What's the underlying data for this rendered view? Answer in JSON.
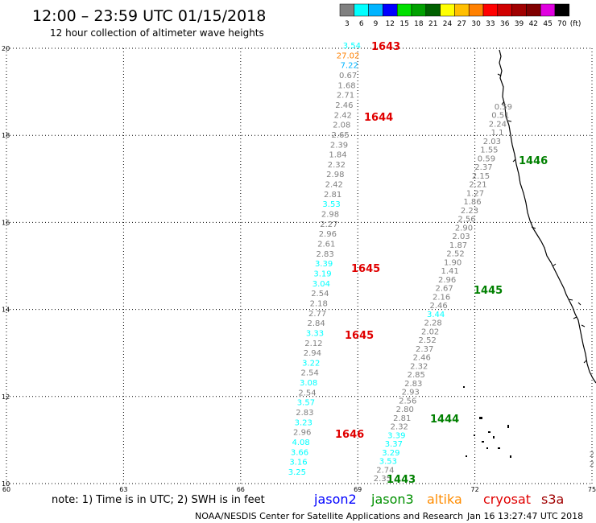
{
  "header": {
    "title": "12:00 – 23:59 UTC 01/15/2018",
    "subtitle": "12 hour collection of altimeter wave heights"
  },
  "colorbar": {
    "labels": [
      "3",
      "6",
      "9",
      "12",
      "15",
      "18",
      "21",
      "24",
      "27",
      "30",
      "33",
      "36",
      "39",
      "42",
      "45",
      "70"
    ],
    "unit": "(ft)",
    "colors": [
      "#808080",
      "#00ffff",
      "#00b4ff",
      "#0000ff",
      "#00e000",
      "#00a000",
      "#006000",
      "#ffff00",
      "#ffbf00",
      "#ff8000",
      "#ff0000",
      "#d00000",
      "#a00000",
      "#800000",
      "#e000e0",
      "#000000"
    ]
  },
  "axes": {
    "lon_ticks": [
      "60",
      "63",
      "66",
      "69",
      "72",
      "75"
    ],
    "lat_ticks": [
      "10",
      "12",
      "14",
      "16",
      "18",
      "20"
    ],
    "lon_range": [
      60,
      75
    ],
    "lat_range": [
      10,
      20
    ],
    "grid": true
  },
  "tracks": {
    "track_a": {
      "values": [
        "3.54",
        "27.02",
        "7.22",
        "0.67",
        "1.68",
        "2.71",
        "2.46",
        "2.42",
        "2.08",
        "2.65",
        "2.39",
        "1.84",
        "2.32",
        "2.98",
        "2.42",
        "2.81",
        "3.53",
        "2.98",
        "2.27",
        "2.96",
        "2.61",
        "2.83",
        "3.39",
        "3.19",
        "3.04",
        "2.54",
        "2.18",
        "2.77",
        "2.84",
        "3.33",
        "2.12",
        "2.94",
        "3.22",
        "2.54",
        "3.08",
        "2.54",
        "3.57",
        "2.83",
        "3.23",
        "2.96",
        "4.08",
        "3.66",
        "3.16",
        "3.25"
      ],
      "colors": [
        "#00ffff",
        "#ff8000",
        "#00b4ff",
        "#808080",
        "#808080",
        "#808080",
        "#808080",
        "#808080",
        "#808080",
        "#808080",
        "#808080",
        "#808080",
        "#808080",
        "#808080",
        "#808080",
        "#808080",
        "#00ffff",
        "#808080",
        "#808080",
        "#808080",
        "#808080",
        "#808080",
        "#00ffff",
        "#00ffff",
        "#00ffff",
        "#808080",
        "#808080",
        "#808080",
        "#808080",
        "#00ffff",
        "#808080",
        "#808080",
        "#00ffff",
        "#808080",
        "#00ffff",
        "#808080",
        "#00ffff",
        "#808080",
        "#00ffff",
        "#808080",
        "#00ffff",
        "#00ffff",
        "#00ffff",
        "#00ffff"
      ]
    },
    "track_b": {
      "values": [
        "0.59",
        "0.51",
        "2.24",
        "1.1",
        "2.03",
        "1.55",
        "0.59",
        "2.37",
        "2.15",
        "2.21",
        "1.27",
        "1.86",
        "2.23",
        "2.56",
        "2.90",
        "2.03",
        "1.87",
        "2.52",
        "1.90",
        "1.41",
        "2.96",
        "2.67",
        "2.16",
        "2.46",
        "3.44",
        "2.28",
        "2.02",
        "2.52",
        "2.37",
        "2.46",
        "2.32",
        "2.85",
        "2.83",
        "2.93",
        "2.56",
        "2.80",
        "2.81",
        "2.32",
        "3.39",
        "3.37",
        "3.29",
        "3.53",
        "2.74",
        "2.35"
      ],
      "colors": [
        "#808080",
        "#808080",
        "#808080",
        "#808080",
        "#808080",
        "#808080",
        "#808080",
        "#808080",
        "#808080",
        "#808080",
        "#808080",
        "#808080",
        "#808080",
        "#808080",
        "#808080",
        "#808080",
        "#808080",
        "#808080",
        "#808080",
        "#808080",
        "#808080",
        "#808080",
        "#808080",
        "#808080",
        "#00ffff",
        "#808080",
        "#808080",
        "#808080",
        "#808080",
        "#808080",
        "#808080",
        "#808080",
        "#808080",
        "#808080",
        "#808080",
        "#808080",
        "#808080",
        "#808080",
        "#00ffff",
        "#00ffff",
        "#00ffff",
        "#00ffff",
        "#808080",
        "#808080"
      ]
    },
    "track_c": {
      "values": [
        "2"
      ],
      "colors": [
        "#808080"
      ]
    },
    "track_d": {
      "values": [
        "2"
      ],
      "colors": [
        "#808080"
      ]
    }
  },
  "time_labels": [
    {
      "text": "1643",
      "color": "#e00000"
    },
    {
      "text": "1644",
      "color": "#e00000"
    },
    {
      "text": "1645",
      "color": "#e00000"
    },
    {
      "text": "1645",
      "color": "#e00000"
    },
    {
      "text": "1646",
      "color": "#e00000"
    },
    {
      "text": "1446",
      "color": "#008000"
    },
    {
      "text": "1445",
      "color": "#008000"
    },
    {
      "text": "1444",
      "color": "#008000"
    },
    {
      "text": "1443",
      "color": "#008000"
    }
  ],
  "footer": {
    "note": "note:  1) Time is in UTC;  2) SWH is in feet",
    "satellites": [
      {
        "name": "jason2",
        "color": "#0000ff"
      },
      {
        "name": "jason3",
        "color": "#009000"
      },
      {
        "name": "altika",
        "color": "#ff8c00"
      },
      {
        "name": "cryosat",
        "color": "#e00000"
      },
      {
        "name": "s3a",
        "color": "#a00000"
      }
    ],
    "credit": "NOAA/NESDIS Center for Satellite Applications and Research",
    "timestamp": "Jan 16 13:27:47 UTC 2018"
  }
}
